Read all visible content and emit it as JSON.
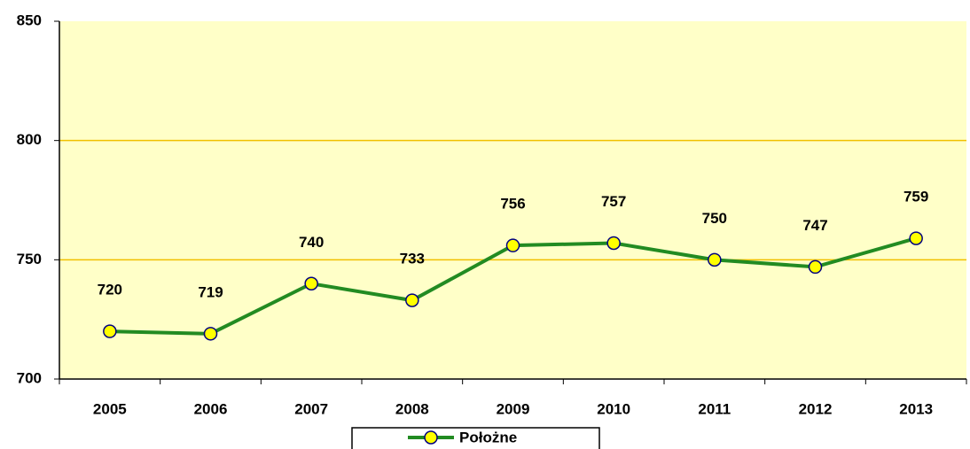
{
  "chart_data": {
    "type": "line",
    "categories": [
      "2005",
      "2006",
      "2007",
      "2008",
      "2009",
      "2010",
      "2011",
      "2012",
      "2013"
    ],
    "series": [
      {
        "name": "Położne",
        "color": "#228b22",
        "values": [
          720,
          719,
          740,
          733,
          756,
          757,
          750,
          747,
          759
        ]
      }
    ],
    "ylim": [
      700,
      850
    ],
    "yticks": [
      700,
      750,
      800,
      850
    ],
    "grid": true,
    "legend": "bottom"
  }
}
